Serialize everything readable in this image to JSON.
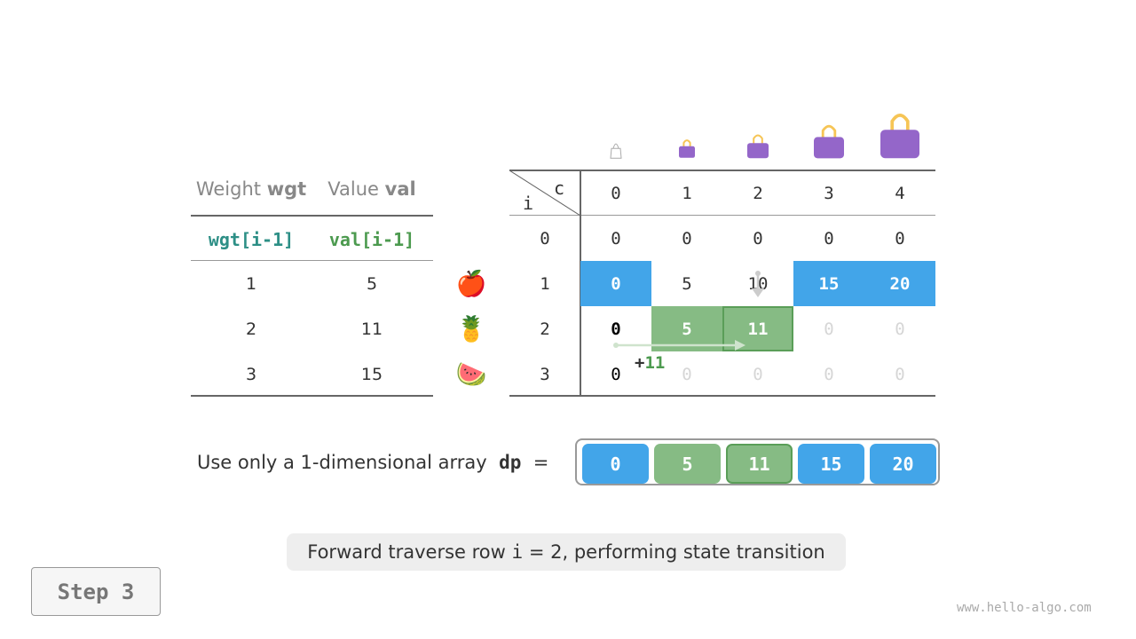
{
  "left_table": {
    "headers": [
      {
        "plain": "Weight ",
        "bold": "wgt"
      },
      {
        "plain": "Value ",
        "bold": "val"
      }
    ],
    "subheaders": [
      "wgt[i-1]",
      "val[i-1]"
    ],
    "rows": [
      [
        "1",
        "5"
      ],
      [
        "2",
        "11"
      ],
      [
        "3",
        "15"
      ]
    ],
    "items": [
      "apple-icon",
      "pineapple-icon",
      "watermelon-icon"
    ],
    "items_glyphs": [
      "🍎",
      "🍍",
      "🍉"
    ]
  },
  "dp_table": {
    "corner_c": "c",
    "corner_i": "i",
    "capacity_icons": [
      "bag-icon-empty",
      "bag-icon-1",
      "bag-icon-2",
      "bag-icon-3",
      "bag-icon-4"
    ],
    "columns": [
      "0",
      "1",
      "2",
      "3",
      "4"
    ],
    "row_labels": [
      "0",
      "1",
      "2",
      "3"
    ],
    "cells": [
      [
        {
          "v": "0",
          "s": "normal"
        },
        {
          "v": "0",
          "s": "normal"
        },
        {
          "v": "0",
          "s": "normal"
        },
        {
          "v": "0",
          "s": "normal"
        },
        {
          "v": "0",
          "s": "normal"
        }
      ],
      [
        {
          "v": "0",
          "s": "blue"
        },
        {
          "v": "5",
          "s": "normal"
        },
        {
          "v": "10",
          "s": "normal"
        },
        {
          "v": "15",
          "s": "blue"
        },
        {
          "v": "20",
          "s": "blue"
        }
      ],
      [
        {
          "v": "0",
          "s": "bold"
        },
        {
          "v": "5",
          "s": "green"
        },
        {
          "v": "11",
          "s": "green-current"
        },
        {
          "v": "0",
          "s": "faded"
        },
        {
          "v": "0",
          "s": "faded"
        }
      ],
      [
        {
          "v": "0",
          "s": "dark"
        },
        {
          "v": "0",
          "s": "faded"
        },
        {
          "v": "0",
          "s": "faded"
        },
        {
          "v": "0",
          "s": "faded"
        },
        {
          "v": "0",
          "s": "faded"
        }
      ]
    ],
    "annotation_plus": "+",
    "annotation_value": "11"
  },
  "dp_array": {
    "label_plain": "Use only a 1-dimensional array ",
    "label_code": "dp",
    "label_eq": "=",
    "cells": [
      {
        "v": "0",
        "s": "blue"
      },
      {
        "v": "5",
        "s": "green"
      },
      {
        "v": "11",
        "s": "green-current"
      },
      {
        "v": "15",
        "s": "blue"
      },
      {
        "v": "20",
        "s": "blue"
      }
    ]
  },
  "caption": {
    "before": "Forward traverse row ",
    "code": "i",
    "after": " = 2, performing state transition"
  },
  "step_button": "Step 3",
  "watermark": "www.hello-algo.com",
  "colors": {
    "blue": "#42a5e9",
    "green": "#86bb84",
    "green_border": "#5a9e58",
    "teal": "#2d8f86",
    "val_green": "#4c9a4f",
    "purple": "#9466c9",
    "handle": "#f6c556",
    "faded": "#d6d6d6"
  }
}
